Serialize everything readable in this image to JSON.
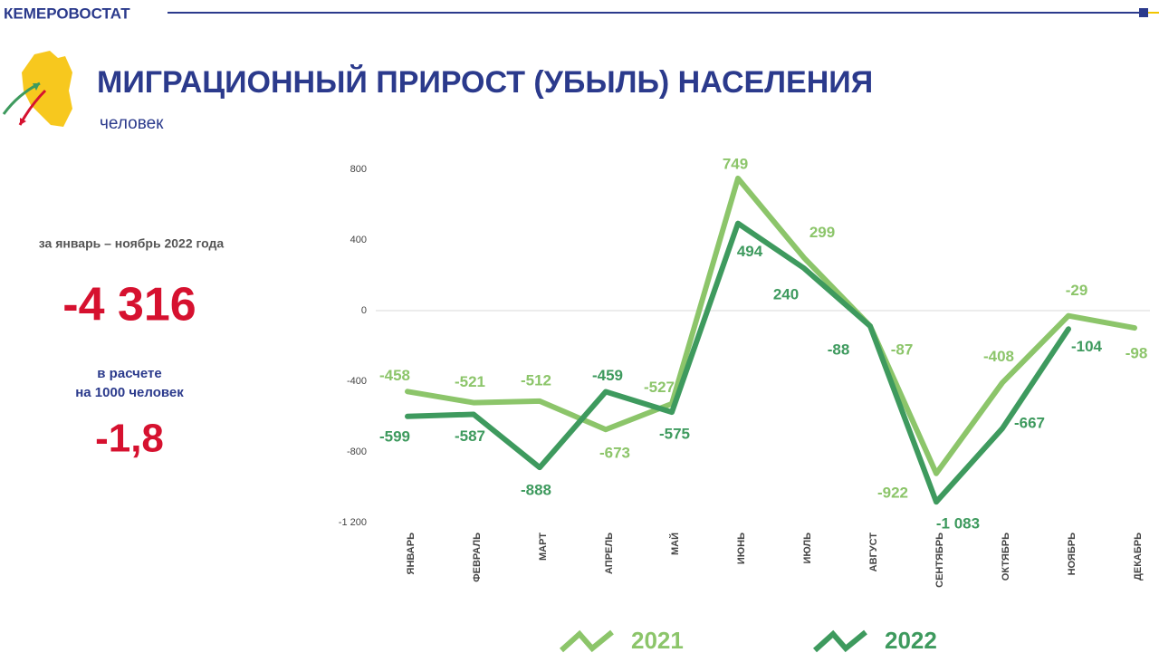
{
  "header": {
    "org": "КЕМЕРОВОСТАТ"
  },
  "summary": {
    "period": "за январь – ноябрь 2022 года",
    "total": "-4 316",
    "rate_label": [
      "в расчете",
      "на 1000 человек"
    ],
    "rate": "-1,8"
  },
  "chart_data": {
    "type": "line",
    "title": "МИГРАЦИОННЫЙ ПРИРОСТ (УБЫЛЬ) НАСЕЛЕНИЯ",
    "subtitle": "человек",
    "categories": [
      "ЯНВАРЬ",
      "ФЕВРАЛЬ",
      "МАРТ",
      "АПРЕЛЬ",
      "МАЙ",
      "ИЮНЬ",
      "ИЮЛЬ",
      "АВГУСТ",
      "СЕНТЯБРЬ",
      "ОКТЯБРЬ",
      "НОЯБРЬ",
      "ДЕКАБРЬ"
    ],
    "series": [
      {
        "name": "2021",
        "color": "#8cc56a",
        "values": [
          -458,
          -521,
          -512,
          -673,
          -527,
          749,
          299,
          -87,
          -922,
          -408,
          -29,
          -98
        ]
      },
      {
        "name": "2022",
        "color": "#3e9a5e",
        "values": [
          -599,
          -587,
          -888,
          -459,
          -575,
          494,
          240,
          -88,
          -1083,
          -667,
          -104,
          null
        ],
        "value_labels": [
          "-599",
          "-587",
          "-888",
          "-459",
          "-575",
          "494",
          "240",
          "-88",
          "-1 083",
          "-667",
          "-104",
          null
        ]
      }
    ],
    "ylim": [
      -1200,
      800
    ],
    "yticks": [
      800,
      400,
      0,
      -400,
      -800,
      {
        "value": -1200,
        "label": "-1 200"
      }
    ],
    "grid": false,
    "legend": "bottom"
  }
}
